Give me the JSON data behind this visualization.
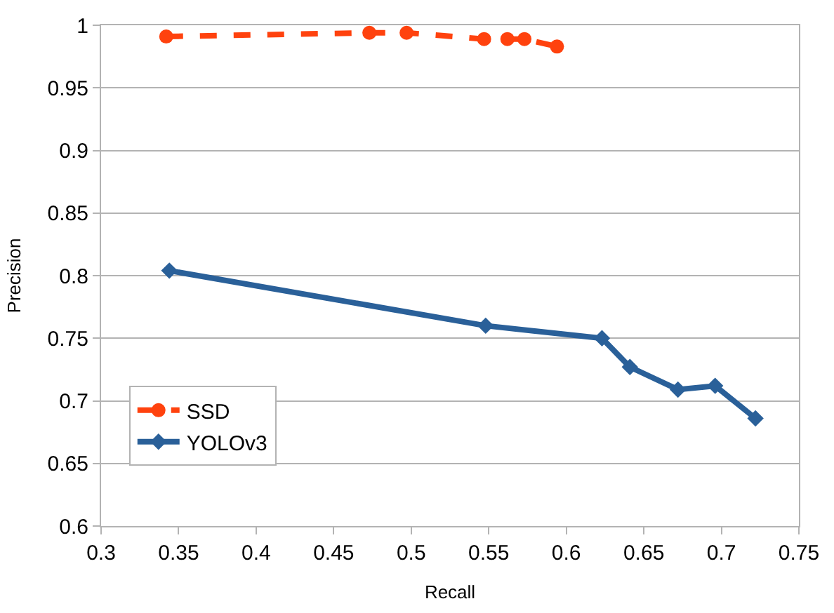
{
  "chart_data": {
    "type": "line",
    "xlabel": "Recall",
    "ylabel": "Precision",
    "xlim": [
      0.3,
      0.75
    ],
    "xticks": [
      0.3,
      0.35,
      0.4,
      0.45,
      0.5,
      0.55,
      0.6,
      0.65,
      0.7,
      0.75
    ],
    "ylim": [
      0.6,
      1
    ],
    "yticks": [
      0.6,
      0.65,
      0.7,
      0.75,
      0.8,
      0.85,
      0.9,
      0.95,
      1
    ],
    "grid": "y",
    "legend": "bottom left",
    "series": [
      {
        "name": "SSD",
        "color": "#ff420e",
        "marker": "circle",
        "line_style": "dashed",
        "x": [
          0.342,
          0.473,
          0.497,
          0.547,
          0.562,
          0.573,
          0.594
        ],
        "values": [
          0.991,
          0.994,
          0.994,
          0.989,
          0.989,
          0.989,
          0.983
        ]
      },
      {
        "name": "YOLOv3",
        "color": "#2a6099",
        "marker": "diamond",
        "line_style": "solid",
        "x": [
          0.344,
          0.548,
          0.623,
          0.641,
          0.672,
          0.696,
          0.722
        ],
        "values": [
          0.804,
          0.76,
          0.75,
          0.727,
          0.709,
          0.712,
          0.686
        ]
      }
    ]
  }
}
